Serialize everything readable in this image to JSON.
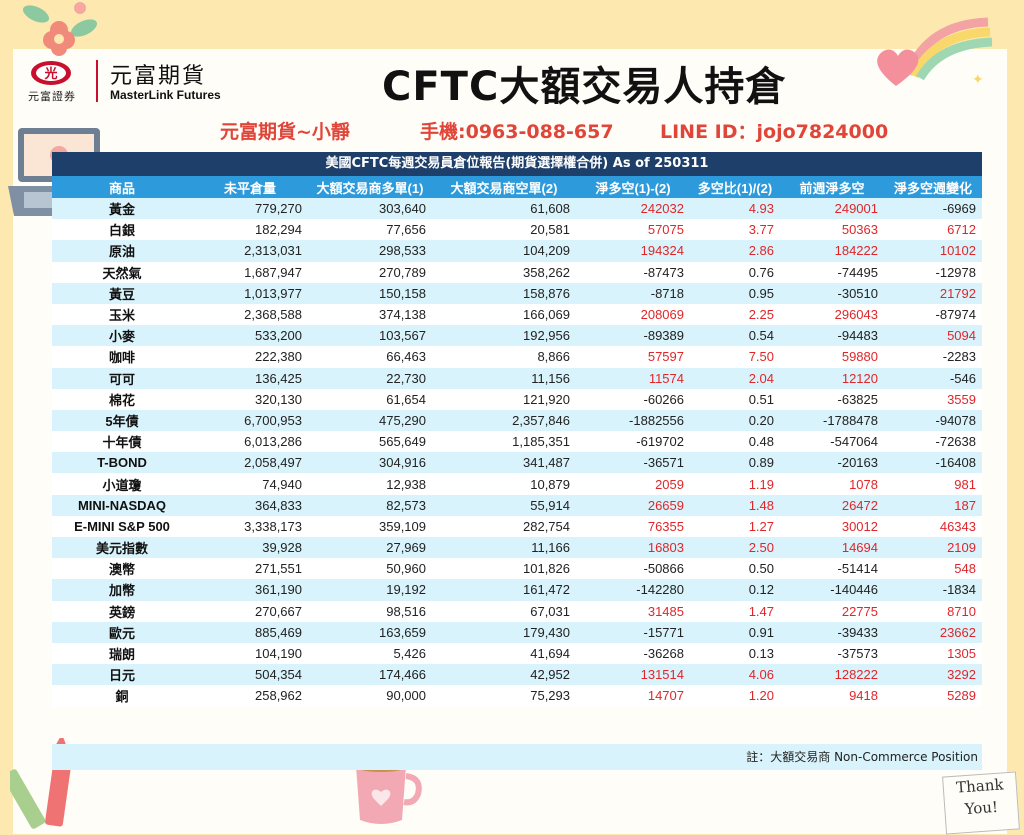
{
  "logo": {
    "cn": "元富期貨",
    "en": "MasterLink Futures",
    "small": "元富證券",
    "mark": "光"
  },
  "title": "CFTC大額交易人持倉",
  "contact": {
    "name": "元富期貨~小靜",
    "phone": "手機:0963-088-657",
    "line": "LINE ID：jojo7824000"
  },
  "table": {
    "caption": "美國CFTC每週交易員倉位報告(期貨選擇權合併) As of  250311",
    "headers": [
      "商品",
      "未平倉量",
      "大額交易商多單(1)",
      "大額交易商空單(2)",
      "淨多空(1)-(2)",
      "多空比(1)/(2)",
      "前週淨多空",
      "淨多空週變化"
    ],
    "rows": [
      [
        "黃金",
        "779,270",
        "303,640",
        "61,608",
        "242032",
        "4.93",
        "249001",
        "-6969"
      ],
      [
        "白銀",
        "182,294",
        "77,656",
        "20,581",
        "57075",
        "3.77",
        "50363",
        "6712"
      ],
      [
        "原油",
        "2,313,031",
        "298,533",
        "104,209",
        "194324",
        "2.86",
        "184222",
        "10102"
      ],
      [
        "天然氣",
        "1,687,947",
        "270,789",
        "358,262",
        "-87473",
        "0.76",
        "-74495",
        "-12978"
      ],
      [
        "黃豆",
        "1,013,977",
        "150,158",
        "158,876",
        "-8718",
        "0.95",
        "-30510",
        "21792"
      ],
      [
        "玉米",
        "2,368,588",
        "374,138",
        "166,069",
        "208069",
        "2.25",
        "296043",
        "-87974"
      ],
      [
        "小麥",
        "533,200",
        "103,567",
        "192,956",
        "-89389",
        "0.54",
        "-94483",
        "5094"
      ],
      [
        "咖啡",
        "222,380",
        "66,463",
        "8,866",
        "57597",
        "7.50",
        "59880",
        "-2283"
      ],
      [
        "可可",
        "136,425",
        "22,730",
        "11,156",
        "11574",
        "2.04",
        "12120",
        "-546"
      ],
      [
        "棉花",
        "320,130",
        "61,654",
        "121,920",
        "-60266",
        "0.51",
        "-63825",
        "3559"
      ],
      [
        "5年債",
        "6,700,953",
        "475,290",
        "2,357,846",
        "-1882556",
        "0.20",
        "-1788478",
        "-94078"
      ],
      [
        "十年債",
        "6,013,286",
        "565,649",
        "1,185,351",
        "-619702",
        "0.48",
        "-547064",
        "-72638"
      ],
      [
        "T-BOND",
        "2,058,497",
        "304,916",
        "341,487",
        "-36571",
        "0.89",
        "-20163",
        "-16408"
      ],
      [
        "小道瓊",
        "74,940",
        "12,938",
        "10,879",
        "2059",
        "1.19",
        "1078",
        "981"
      ],
      [
        "MINI-NASDAQ",
        "364,833",
        "82,573",
        "55,914",
        "26659",
        "1.48",
        "26472",
        "187"
      ],
      [
        "E-MINI S&P 500",
        "3,338,173",
        "359,109",
        "282,754",
        "76355",
        "1.27",
        "30012",
        "46343"
      ],
      [
        "美元指數",
        "39,928",
        "27,969",
        "11,166",
        "16803",
        "2.50",
        "14694",
        "2109"
      ],
      [
        "澳幣",
        "271,551",
        "50,960",
        "101,826",
        "-50866",
        "0.50",
        "-51414",
        "548"
      ],
      [
        "加幣",
        "361,190",
        "19,192",
        "161,472",
        "-142280",
        "0.12",
        "-140446",
        "-1834"
      ],
      [
        "英鎊",
        "270,667",
        "98,516",
        "67,031",
        "31485",
        "1.47",
        "22775",
        "8710"
      ],
      [
        "歐元",
        "885,469",
        "163,659",
        "179,430",
        "-15771",
        "0.91",
        "-39433",
        "23662"
      ],
      [
        "瑞朗",
        "104,190",
        "5,426",
        "41,694",
        "-36268",
        "0.13",
        "-37573",
        "1305"
      ],
      [
        "日元",
        "504,354",
        "174,466",
        "42,952",
        "131514",
        "4.06",
        "128222",
        "3292"
      ],
      [
        "銅",
        "258,962",
        "90,000",
        "75,293",
        "14707",
        "1.20",
        "9418",
        "5289"
      ]
    ],
    "note": "註：大額交易商 Non-Commerce Position"
  },
  "colors": {
    "positive": "#e0262a",
    "header_bg": "#2d9bdb",
    "caption_bg": "#1d3f6a",
    "stripe": "#d8f3fb",
    "page_bg": "#fde9b0"
  },
  "decor": {
    "thank_you": [
      "Thank",
      "You!"
    ]
  }
}
